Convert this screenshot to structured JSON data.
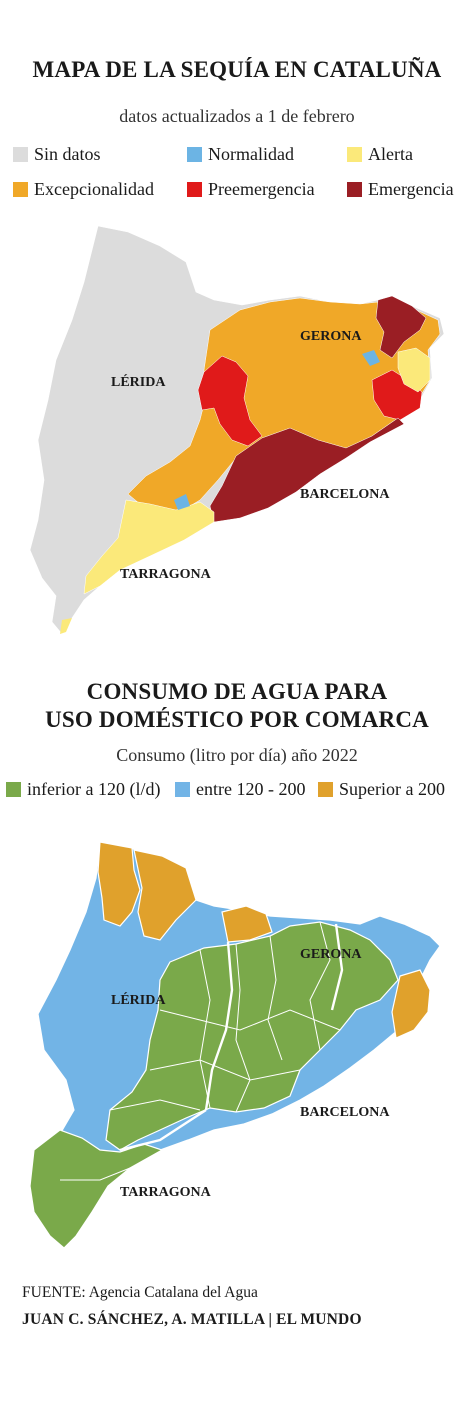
{
  "map1": {
    "title": "MAPA DE LA SEQUÍA EN CATALUÑA",
    "subtitle": "datos actualizados a 1 de febrero",
    "legend": [
      {
        "label": "Sin datos",
        "color": "#dcdcdc"
      },
      {
        "label": "Normalidad",
        "color": "#6cb4e4"
      },
      {
        "label": "Alerta",
        "color": "#fbe97a"
      },
      {
        "label": "Excepcionalidad",
        "color": "#f0a828"
      },
      {
        "label": "Preemergencia",
        "color": "#e01a1a"
      },
      {
        "label": "Emergencia",
        "color": "#9a1e24"
      }
    ],
    "labels": {
      "lerida": "LÉRIDA",
      "gerona": "GERONA",
      "barcelona": "BARCELONA",
      "tarragona": "TARRAGONA"
    }
  },
  "map2": {
    "title_line1": "CONSUMO DE AGUA PARA",
    "title_line2": "USO DOMÉSTICO POR COMARCA",
    "subtitle": "Consumo (litro por día) año 2022",
    "legend": [
      {
        "label": "inferior a 120 (l/d)",
        "color": "#7aa94a"
      },
      {
        "label": "entre 120 - 200",
        "color": "#72b4e6"
      },
      {
        "label": "Superior a 200",
        "color": "#e0a12c"
      }
    ],
    "labels": {
      "lerida": "LÉRIDA",
      "gerona": "GERONA",
      "barcelona": "BARCELONA",
      "tarragona": "TARRAGONA"
    }
  },
  "footer": {
    "source_prefix": "FUENTE:",
    "source_text": " Agencia Catalana del Agua",
    "credit": "JUAN C. SÁNCHEZ, A. MATILLA | EL MUNDO"
  }
}
